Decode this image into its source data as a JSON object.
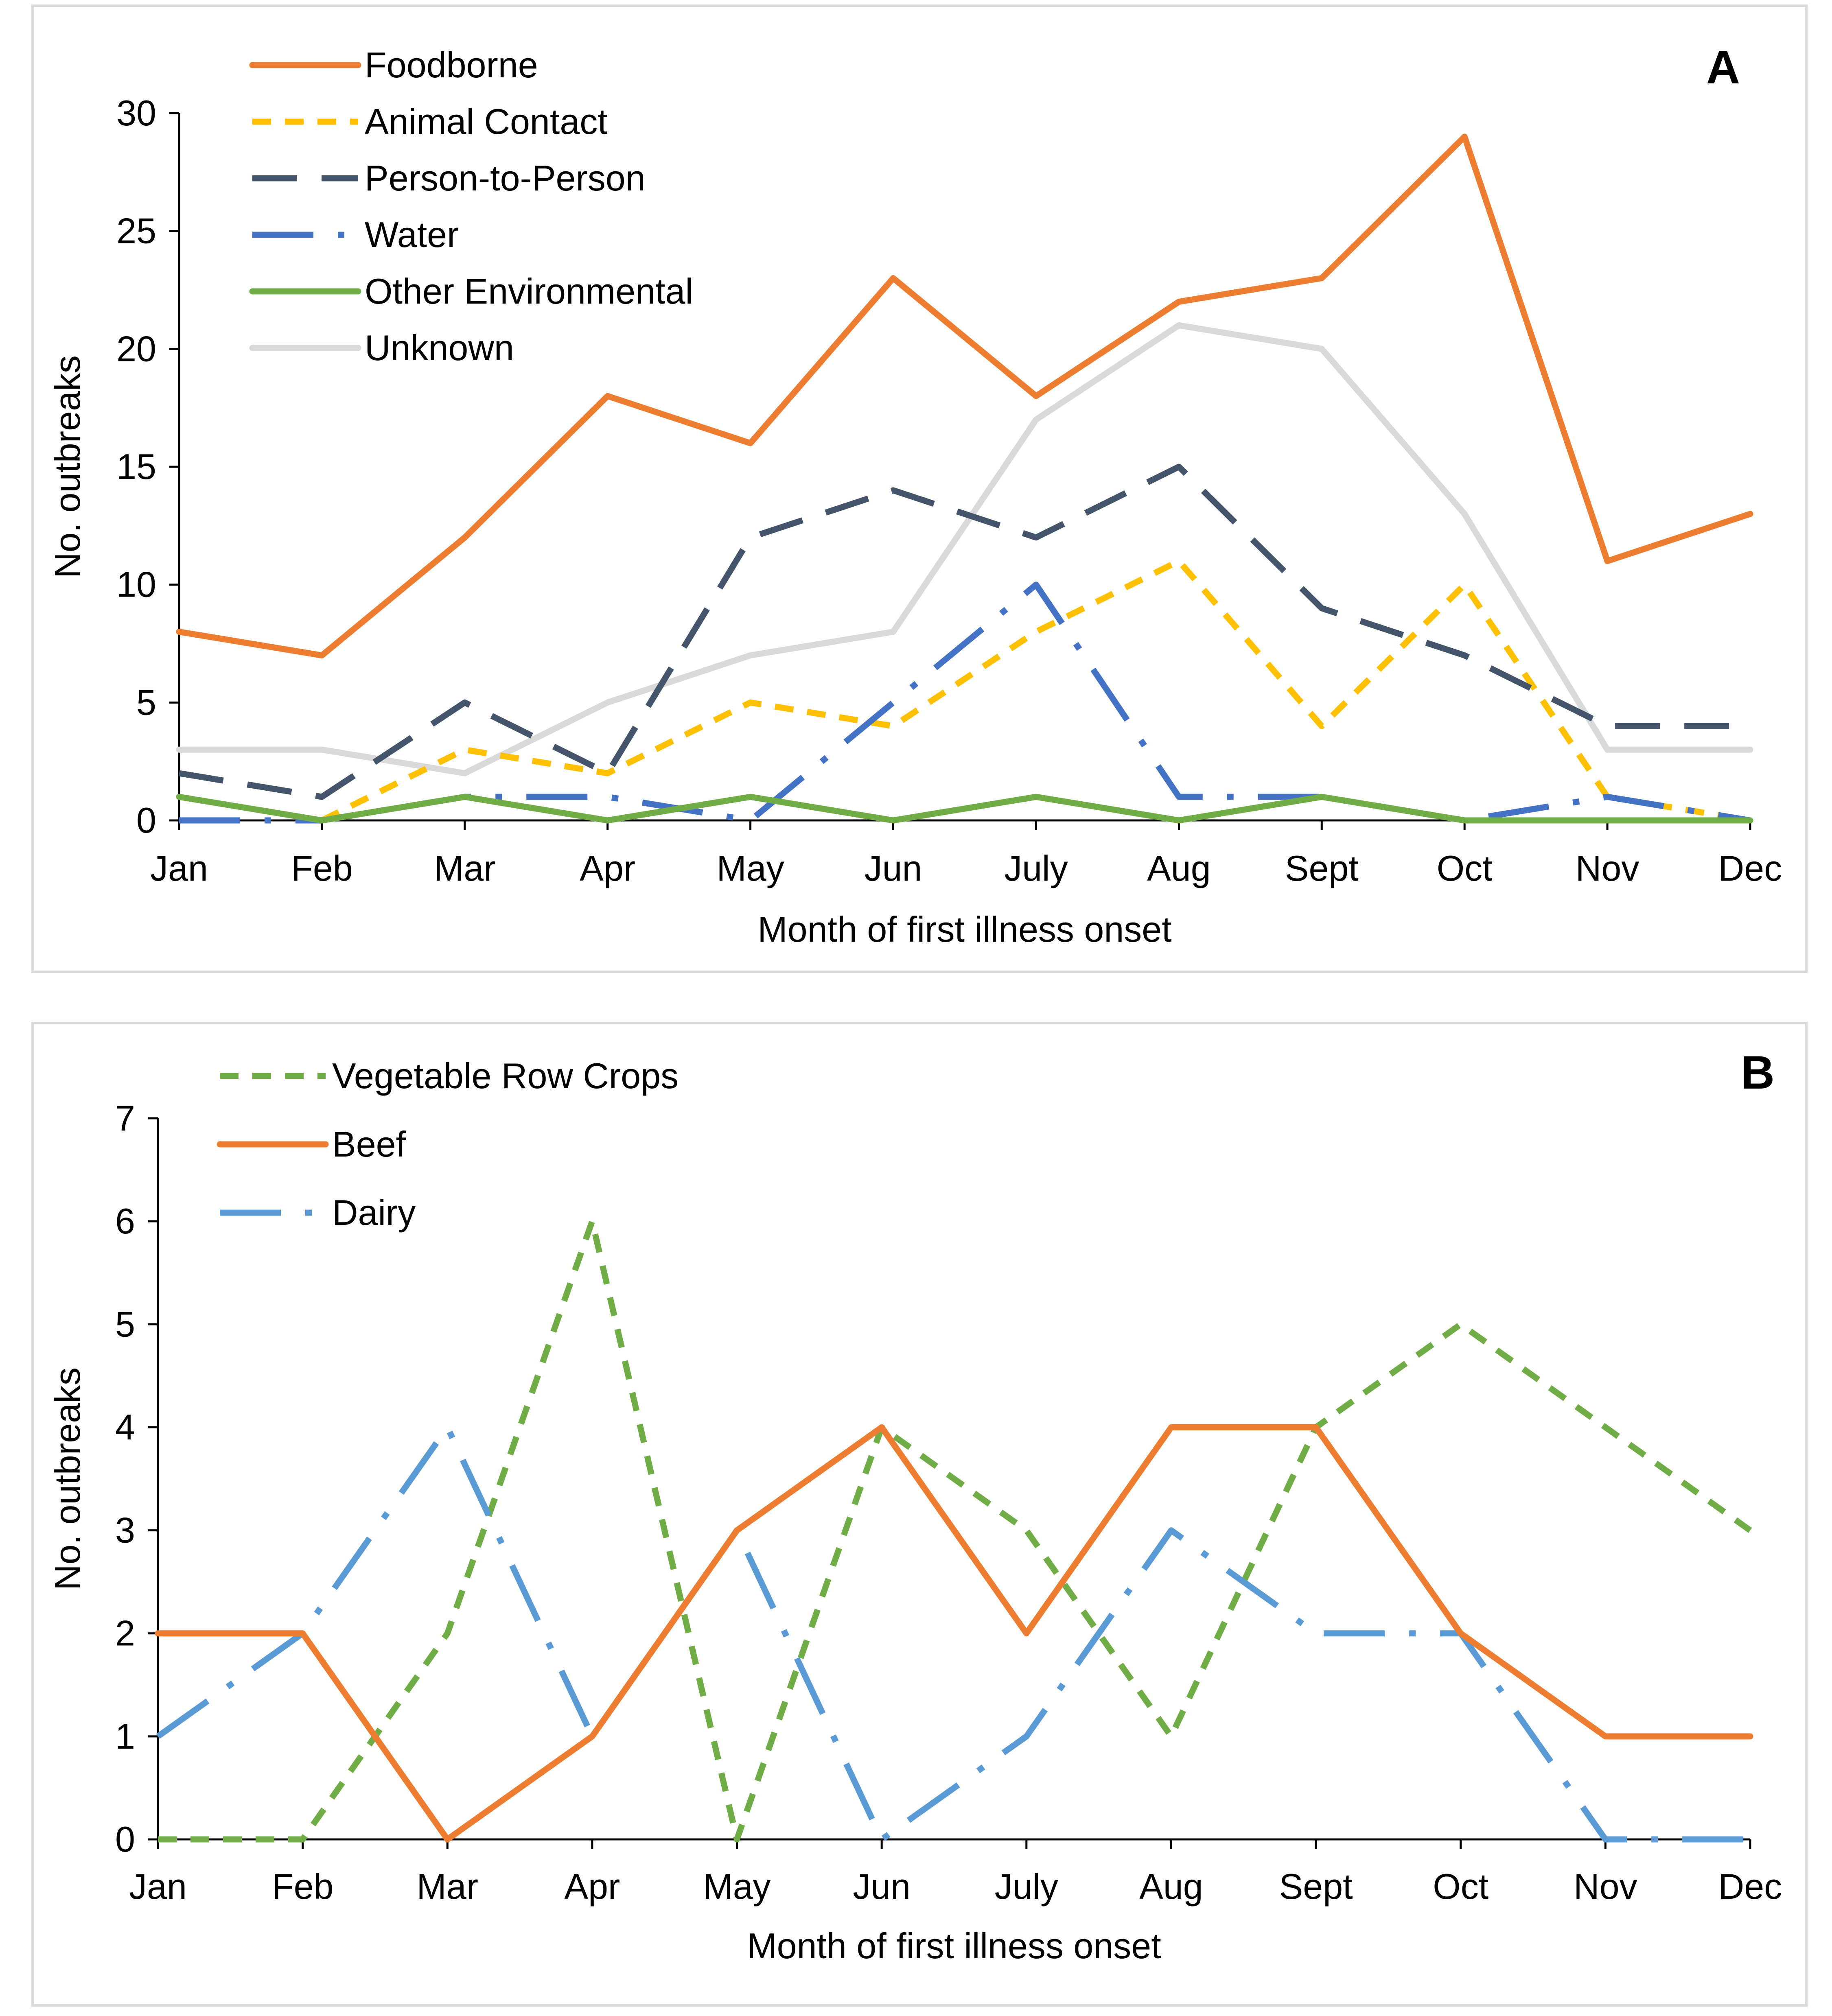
{
  "chart_data": [
    {
      "panel": "A",
      "type": "line",
      "ylabel": "No. outbreaks",
      "xlabel": "Month of first illness onset",
      "ylim": [
        0,
        30
      ],
      "yticks": [
        "0",
        "5",
        "10",
        "15",
        "20",
        "25",
        "30"
      ],
      "categories": [
        "Jan",
        "Feb",
        "Mar",
        "Apr",
        "May",
        "Jun",
        "July",
        "Aug",
        "Sept",
        "Oct",
        "Nov",
        "Dec"
      ],
      "series": [
        {
          "name": "Foodborne",
          "color": "#ED7D31",
          "dash": "solid",
          "values": [
            8,
            7,
            12,
            18,
            16,
            23,
            18,
            22,
            23,
            29,
            11,
            13
          ]
        },
        {
          "name": "Animal Contact",
          "color": "#FFC000",
          "dash": "short",
          "values": [
            null,
            0,
            3,
            2,
            5,
            4,
            8,
            11,
            4,
            10,
            1,
            0
          ]
        },
        {
          "name": "Person-to-Person",
          "color": "#44546A",
          "dash": "long",
          "values": [
            2,
            1,
            5,
            2,
            12,
            14,
            12,
            15,
            9,
            7,
            4,
            4
          ]
        },
        {
          "name": "Water",
          "color": "#4472C4",
          "dash": "longdot",
          "values": [
            0,
            0,
            1,
            1,
            0,
            5,
            10,
            1,
            1,
            0,
            1,
            0
          ]
        },
        {
          "name": "Other Environmental",
          "color": "#70AD47",
          "dash": "solid",
          "values": [
            1,
            0,
            1,
            0,
            1,
            0,
            1,
            0,
            1,
            0,
            0,
            0
          ]
        },
        {
          "name": "Unknown",
          "color": "#D9D9D9",
          "dash": "solid",
          "values": [
            3,
            3,
            2,
            5,
            7,
            8,
            17,
            21,
            20,
            13,
            3,
            3
          ]
        }
      ]
    },
    {
      "panel": "B",
      "type": "line",
      "ylabel": "No. outbreaks",
      "xlabel": "Month of first illness onset",
      "ylim": [
        0,
        7
      ],
      "yticks": [
        "0",
        "1",
        "2",
        "3",
        "4",
        "5",
        "6",
        "7"
      ],
      "categories": [
        "Jan",
        "Feb",
        "Mar",
        "Apr",
        "May",
        "Jun",
        "July",
        "Aug",
        "Sept",
        "Oct",
        "Nov",
        "Dec"
      ],
      "series": [
        {
          "name": "Vegetable Row Crops",
          "color": "#70AD47",
          "dash": "short",
          "values": [
            0,
            0,
            2,
            6,
            0,
            4,
            3,
            1,
            4,
            5,
            4,
            3
          ]
        },
        {
          "name": "Beef",
          "color": "#ED7D31",
          "dash": "solid",
          "values": [
            2,
            2,
            0,
            1,
            3,
            4,
            2,
            4,
            4,
            2,
            1,
            1
          ]
        },
        {
          "name": "Dairy",
          "color": "#5B9BD5",
          "dash": "longdot",
          "values": [
            1,
            2,
            4,
            1,
            3,
            0,
            1,
            3,
            2,
            2,
            0,
            0
          ]
        }
      ]
    }
  ]
}
